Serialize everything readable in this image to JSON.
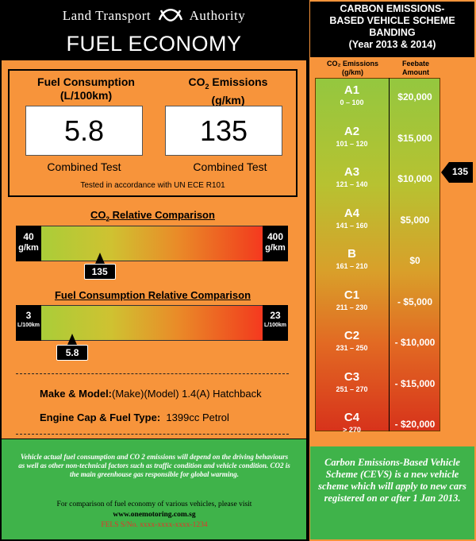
{
  "header": {
    "org_left": "Land Transport",
    "org_right": "Authority",
    "title": "FUEL ECONOMY"
  },
  "measures": {
    "fuel": {
      "label_line1": "Fuel Consumption",
      "label_line2": "(L/100km)",
      "value": "5.8",
      "test": "Combined Test"
    },
    "co2": {
      "label_prefix": "CO",
      "label_sub": "2",
      "label_suffix": " Emissions",
      "label_line2": "(g/km)",
      "value": "135",
      "test": "Combined Test"
    },
    "note": "Tested in accordance with UN ECE R101"
  },
  "co2_comparison": {
    "title_prefix": "CO",
    "title_sub": "2",
    "title_suffix": " Relative Comparison",
    "min_value": "40",
    "min_unit": "g/km",
    "max_value": "400",
    "max_unit": "g/km",
    "pointer": "135",
    "pointer_fraction": 0.264
  },
  "fuel_comparison": {
    "title": "Fuel Consumption Relative Comparison",
    "min_value": "3",
    "min_unit": "L/100km",
    "max_value": "23",
    "max_unit": "L/100km",
    "pointer": "5.8",
    "pointer_fraction": 0.14
  },
  "vehicle": {
    "make_label": "Make & Model:",
    "make_value": "(Make)(Model) 1.4(A) Hatchback",
    "engine_label": "Engine Cap & Fuel Type:",
    "engine_value": "1399cc  Petrol"
  },
  "left_footer": {
    "disclaimer": "Vehicle actual fuel consumption and CO 2 emissions will depend on the driving behaviours as well as other non-technical factors such as traffic condition and vehicle condition. CO2 is the main greenhouse gas responsible for global warming.",
    "compare_text": "For comparison of fuel economy of various vehicles, please visit",
    "website": "www.onemotoring.com.sg",
    "fels": "FELS S/No. xxxx-xxxx-xxxx-1234"
  },
  "cevs": {
    "title_line1": "CARBON EMISSIONS-",
    "title_line2": "BASED VEHICLE SCHEME",
    "title_line3": "BANDING",
    "title_line4": "(Year 2013 & 2014)",
    "col1_line1": "CO₂ Emissions",
    "col1_line2": "(g/km)",
    "col2_line1": "Feebate",
    "col2_line2": "Amount",
    "bands": [
      {
        "code": "A1",
        "range": "0 – 100",
        "amount": "$20,000"
      },
      {
        "code": "A2",
        "range": "101 – 120",
        "amount": "$15,000"
      },
      {
        "code": "A3",
        "range": "121 – 140",
        "amount": "$10,000"
      },
      {
        "code": "A4",
        "range": "141 – 160",
        "amount": "$5,000"
      },
      {
        "code": "B",
        "range": "161 – 210",
        "amount": "$0"
      },
      {
        "code": "C1",
        "range": "211 – 230",
        "amount": "- $5,000"
      },
      {
        "code": "C2",
        "range": "231 – 250",
        "amount": "- $10,000"
      },
      {
        "code": "C3",
        "range": "251 – 270",
        "amount": "- $15,000"
      },
      {
        "code": "C4",
        "range": "> 270",
        "amount": "- $20,000"
      }
    ],
    "pointer": "135",
    "footer": "Carbon Emissions-Based Vehicle Scheme (CEVS) is a new vehicle scheme which will apply to new cars registered on or after 1 Jan 2013."
  }
}
